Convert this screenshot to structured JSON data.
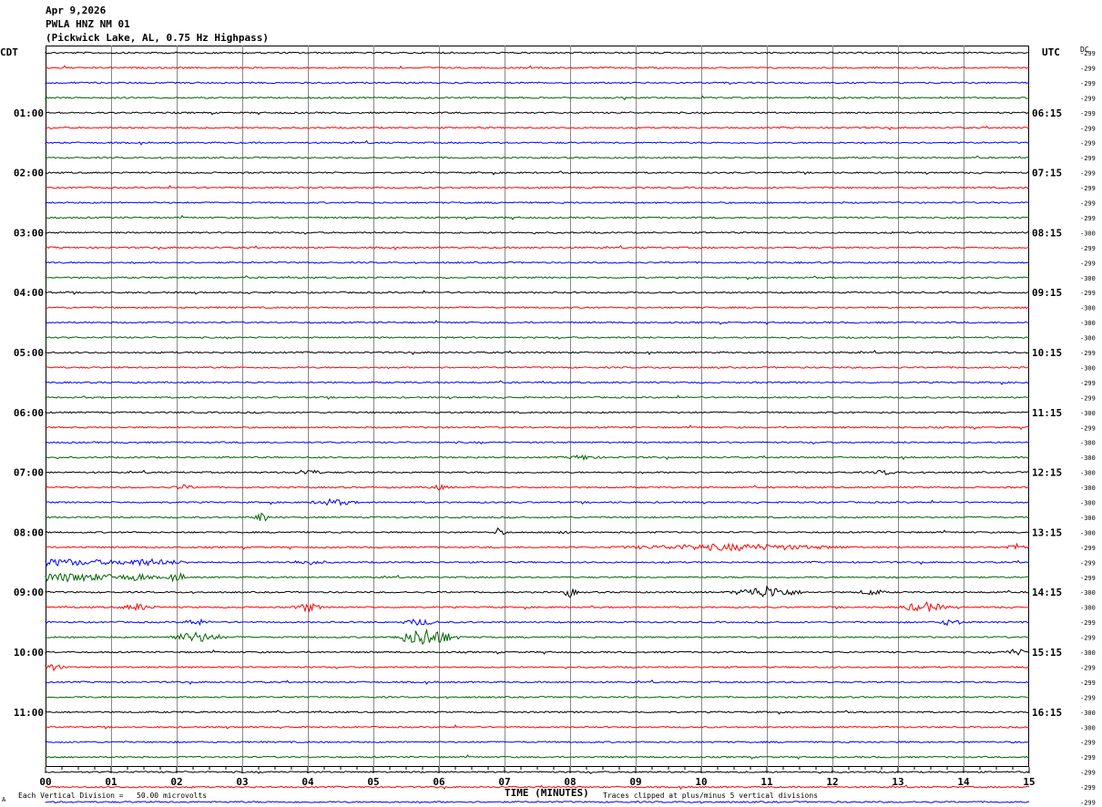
{
  "header": {
    "date": "Apr 9,2026",
    "station": "PWLA HNZ NM 01",
    "location": "(Pickwick Lake, AL, 0.75 Hz Highpass)"
  },
  "left_zone_label": "CDT",
  "right_zone_label": "UTC",
  "dc_label": "DC",
  "footer": {
    "scale_note": "Each Vertical Division =   50.00 microvolts",
    "clip_note": "Traces clipped at plus/minus 5 vertical divisions",
    "corner_mark": "A"
  },
  "chart_data": {
    "type": "line",
    "xlabel": "TIME (MINUTES)",
    "xlim": [
      0,
      15
    ],
    "x_ticks": [
      "00",
      "01",
      "02",
      "03",
      "04",
      "05",
      "06",
      "07",
      "08",
      "09",
      "10",
      "11",
      "12",
      "13",
      "14",
      "15"
    ],
    "left_hour_labels": [
      "01:00",
      "02:00",
      "03:00",
      "04:00",
      "05:00",
      "06:00",
      "07:00",
      "08:00",
      "09:00",
      "10:00",
      "11:00"
    ],
    "right_hour_labels": [
      "06:15",
      "07:15",
      "08:15",
      "09:15",
      "10:15",
      "11:15",
      "12:15",
      "13:15",
      "14:15",
      "15:15",
      "16:15"
    ],
    "trace_colors": [
      "#000000",
      "#ff0000",
      "#0000ff",
      "#006400"
    ],
    "dc_offsets": [
      -299,
      -299,
      -299,
      -299,
      -299,
      -299,
      -299,
      -299,
      -299,
      -299,
      -299,
      -299,
      -300,
      -299,
      -299,
      -300,
      -299,
      -300,
      -300,
      -300,
      -299,
      -300,
      -299,
      -299,
      -300,
      -299,
      -300,
      -300,
      -300,
      -300,
      -300,
      -300,
      -300,
      -299,
      -299,
      -299,
      -300,
      -300,
      -299,
      -299,
      -300,
      -299,
      -299,
      -299,
      -300,
      -300,
      -299,
      -299,
      -299,
      -299,
      -299,
      -299,
      -299
    ],
    "events": [
      {
        "trace": 27,
        "minute": 8.2,
        "amp": 3,
        "dur": 0.4
      },
      {
        "trace": 28,
        "minute": 4.0,
        "amp": 4,
        "dur": 0.3
      },
      {
        "trace": 28,
        "minute": 12.8,
        "amp": 3,
        "dur": 0.3
      },
      {
        "trace": 29,
        "minute": 2.1,
        "amp": 3,
        "dur": 0.3
      },
      {
        "trace": 29,
        "minute": 6.0,
        "amp": 3,
        "dur": 0.3
      },
      {
        "trace": 30,
        "minute": 4.4,
        "amp": 4,
        "dur": 0.5
      },
      {
        "trace": 31,
        "minute": 3.3,
        "amp": 7,
        "dur": 0.15
      },
      {
        "trace": 32,
        "minute": 6.9,
        "amp": 5,
        "dur": 0.15
      },
      {
        "trace": 32,
        "minute": 7.9,
        "amp": 3,
        "dur": 0.2
      },
      {
        "trace": 33,
        "minute": 10.5,
        "amp": 4,
        "dur": 2.5
      },
      {
        "trace": 33,
        "minute": 14.8,
        "amp": 4,
        "dur": 0.3
      },
      {
        "trace": 34,
        "minute": 0.2,
        "amp": 4,
        "dur": 2.0
      },
      {
        "trace": 34,
        "minute": 1.5,
        "amp": 4,
        "dur": 1.0
      },
      {
        "trace": 34,
        "minute": 4.0,
        "amp": 3,
        "dur": 0.5
      },
      {
        "trace": 35,
        "minute": 0.3,
        "amp": 5,
        "dur": 2.0
      },
      {
        "trace": 35,
        "minute": 1.4,
        "amp": 6,
        "dur": 0.2
      },
      {
        "trace": 35,
        "minute": 2.0,
        "amp": 6,
        "dur": 0.2
      },
      {
        "trace": 36,
        "minute": 8.0,
        "amp": 6,
        "dur": 0.15
      },
      {
        "trace": 36,
        "minute": 11.0,
        "amp": 7,
        "dur": 0.7
      },
      {
        "trace": 36,
        "minute": 12.6,
        "amp": 4,
        "dur": 0.3
      },
      {
        "trace": 37,
        "minute": 1.4,
        "amp": 4,
        "dur": 0.4
      },
      {
        "trace": 37,
        "minute": 4.0,
        "amp": 5,
        "dur": 0.3
      },
      {
        "trace": 37,
        "minute": 13.4,
        "amp": 6,
        "dur": 0.5
      },
      {
        "trace": 38,
        "minute": 2.3,
        "amp": 4,
        "dur": 0.3
      },
      {
        "trace": 38,
        "minute": 5.7,
        "amp": 4,
        "dur": 0.4
      },
      {
        "trace": 38,
        "minute": 13.8,
        "amp": 4,
        "dur": 0.3
      },
      {
        "trace": 39,
        "minute": 2.3,
        "amp": 6,
        "dur": 0.6
      },
      {
        "trace": 39,
        "minute": 5.8,
        "amp": 11,
        "dur": 0.6
      },
      {
        "trace": 40,
        "minute": 14.8,
        "amp": 4,
        "dur": 0.3
      },
      {
        "trace": 41,
        "minute": 0.1,
        "amp": 4,
        "dur": 0.3
      }
    ]
  }
}
